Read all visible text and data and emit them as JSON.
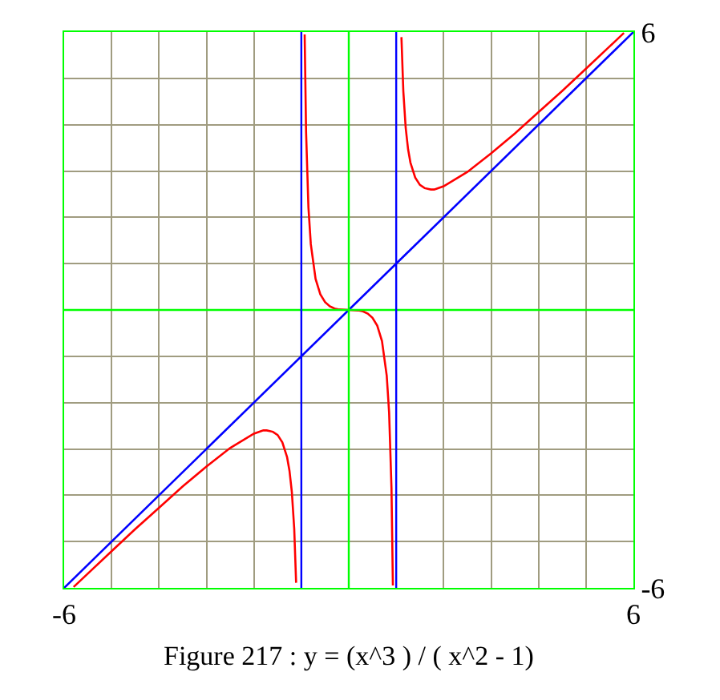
{
  "chart_data": {
    "type": "line",
    "title": "Figure 217 : y = (x^3 ) / ( x^2 - 1)",
    "xlim": [
      -6,
      6
    ],
    "ylim": [
      -6,
      6
    ],
    "xticks": [
      -6,
      6
    ],
    "yticks": [
      -6,
      6
    ],
    "grid": true,
    "series": [
      {
        "color": "#ff0000",
        "x": [
          -5.8,
          -5.5,
          -5,
          -4.5,
          -4,
          -3.5,
          -3,
          -2.5,
          -2,
          -1.8,
          -1.73,
          -1.6,
          -1.5,
          -1.4,
          -1.3,
          -1.25,
          -1.2,
          -1.15,
          -1.11,
          null,
          -0.93,
          -0.9,
          -0.85,
          -0.8,
          -0.7,
          -0.6,
          -0.5,
          -0.4,
          -0.3,
          -0.2,
          0,
          0.2,
          0.3,
          0.4,
          0.5,
          0.6,
          0.7,
          0.8,
          0.85,
          0.9,
          0.93,
          null,
          1.11,
          1.15,
          1.2,
          1.25,
          1.3,
          1.4,
          1.5,
          1.6,
          1.73,
          1.8,
          2,
          2.5,
          3,
          3.5,
          4,
          4.5,
          5,
          5.5,
          5.8
        ],
        "values": [
          -5.98,
          -5.69,
          -5.21,
          -4.73,
          -4.27,
          -3.81,
          -3.38,
          -2.98,
          -2.67,
          -2.6,
          -2.6,
          -2.63,
          -2.7,
          -2.86,
          -3.18,
          -3.47,
          -3.93,
          -4.72,
          -5.89,
          null,
          5.95,
          3.84,
          2.21,
          1.42,
          0.67,
          0.34,
          0.17,
          0.08,
          0.03,
          0.01,
          0,
          -0.01,
          -0.03,
          -0.08,
          -0.17,
          -0.34,
          -0.67,
          -1.42,
          -2.21,
          -3.84,
          -5.95,
          null,
          5.89,
          4.72,
          3.93,
          3.47,
          3.18,
          2.86,
          2.7,
          2.63,
          2.6,
          2.6,
          2.67,
          2.98,
          3.38,
          3.81,
          4.27,
          4.73,
          5.21,
          5.69,
          5.98
        ]
      },
      {
        "color": "#0000ff",
        "x": [
          -6,
          6
        ],
        "values": [
          -6,
          6
        ]
      }
    ],
    "ref_lines": [
      {
        "axis": "x",
        "value": 0,
        "color": "#00ff00"
      },
      {
        "axis": "y",
        "value": 0,
        "color": "#00ff00"
      },
      {
        "axis": "x",
        "value": -1,
        "color": "#0000ff"
      },
      {
        "axis": "x",
        "value": 1,
        "color": "#0000ff"
      }
    ]
  }
}
